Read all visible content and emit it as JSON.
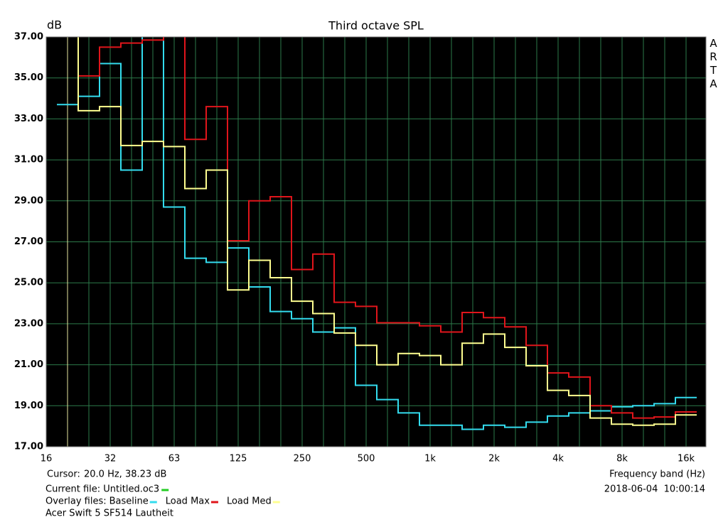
{
  "chart_data": {
    "type": "step",
    "title": "Third octave SPL",
    "y_label": "dB",
    "x_label": "Frequency band (Hz)",
    "side_label": "ARTA",
    "categories": [
      "16",
      null,
      null,
      "32",
      null,
      null,
      "63",
      null,
      null,
      "125",
      null,
      null,
      "250",
      null,
      null,
      "500",
      null,
      null,
      "1k",
      null,
      null,
      "2k",
      null,
      null,
      "4k",
      null,
      null,
      "8k",
      null,
      null,
      "16k"
    ],
    "ylim": [
      17,
      37
    ],
    "yticks": [
      {
        "value": 17,
        "label": "17.00"
      },
      {
        "value": 19,
        "label": "19.00"
      },
      {
        "value": 21,
        "label": "21.00"
      },
      {
        "value": 23,
        "label": "23.00"
      },
      {
        "value": 25,
        "label": "25.00"
      },
      {
        "value": 27,
        "label": "27.00"
      },
      {
        "value": 29,
        "label": "29.00"
      },
      {
        "value": 31,
        "label": "31.00"
      },
      {
        "value": 33,
        "label": "33.00"
      },
      {
        "value": 35,
        "label": "35.00"
      },
      {
        "value": 37,
        "label": "37.00"
      }
    ],
    "grid": true,
    "series": [
      {
        "name": "Baseline",
        "color": "#33dcee",
        "values": [
          null,
          33.7,
          34.1,
          35.7,
          30.5,
          38,
          28.7,
          26.2,
          26.0,
          26.7,
          24.8,
          23.6,
          23.25,
          22.6,
          22.8,
          20.0,
          19.3,
          18.65,
          18.05,
          18.05,
          17.85,
          18.05,
          17.95,
          18.2,
          18.5,
          18.65,
          18.75,
          18.95,
          19.0,
          19.1,
          19.4
        ]
      },
      {
        "name": "Load Max",
        "color": "#e0151b",
        "values": [
          null,
          38,
          35.1,
          36.5,
          36.7,
          36.85,
          38,
          32.0,
          33.6,
          27.05,
          29.0,
          29.2,
          25.65,
          26.4,
          24.05,
          23.85,
          23.05,
          23.05,
          22.9,
          22.6,
          23.55,
          23.3,
          22.85,
          21.95,
          20.6,
          20.4,
          19.0,
          18.65,
          18.4,
          18.45,
          18.7
        ]
      },
      {
        "name": "Load Med",
        "color": "#ffff90",
        "values": [
          null,
          38,
          33.4,
          33.6,
          31.7,
          31.9,
          31.65,
          29.6,
          30.5,
          24.65,
          26.1,
          25.25,
          24.1,
          23.5,
          22.55,
          21.95,
          21.0,
          21.55,
          21.45,
          21.0,
          22.05,
          22.5,
          21.85,
          20.95,
          19.75,
          19.5,
          18.4,
          18.1,
          18.05,
          18.1,
          18.55
        ]
      }
    ],
    "cursor_label": "Cursor:",
    "cursor_value": "20.0 Hz, 38.23 dB",
    "current_file": "Current file: Untitled.oc3",
    "overlay_label": "Overlay files:",
    "timestamp": "2018-06-04  10:00:14",
    "caption": "Acer Swift 5 SF514 Lautheit"
  }
}
